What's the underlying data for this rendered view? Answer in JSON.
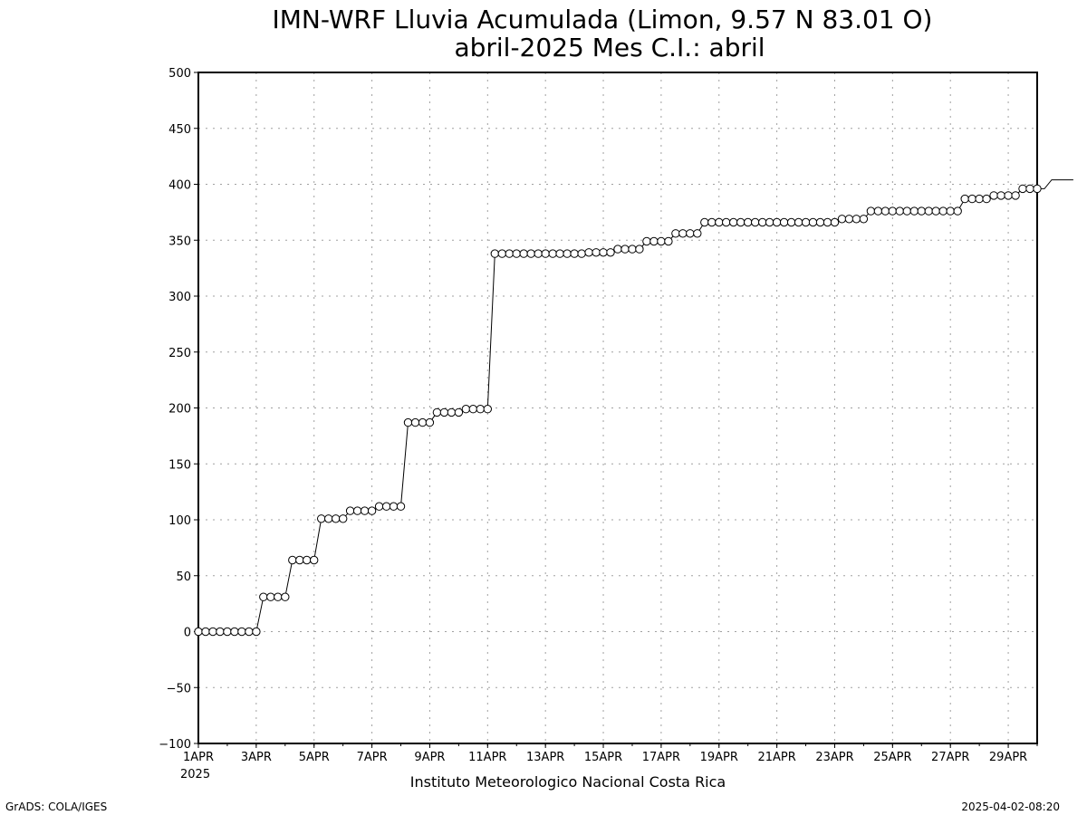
{
  "chart_data": {
    "type": "line",
    "title_line1": "IMN-WRF  Lluvia Acumulada (Limon, 9.57  N 83.01  O)",
    "title_line2": "abril-2025 Mes C.I.: abril",
    "xlabel": "",
    "ylabel": "",
    "ylim": [
      -100,
      500
    ],
    "yticks": [
      "500",
      "450",
      "400",
      "350",
      "300",
      "250",
      "200",
      "150",
      "100",
      "50",
      "0",
      "−50",
      "−100"
    ],
    "ytick_values": [
      500,
      450,
      400,
      350,
      300,
      250,
      200,
      150,
      100,
      50,
      0,
      -50,
      -100
    ],
    "xlim_days": [
      1,
      30
    ],
    "xticks": [
      {
        "day": 1,
        "label": "1APR"
      },
      {
        "day": 3,
        "label": "3APR"
      },
      {
        "day": 5,
        "label": "5APR"
      },
      {
        "day": 7,
        "label": "7APR"
      },
      {
        "day": 9,
        "label": "9APR"
      },
      {
        "day": 11,
        "label": "11APR"
      },
      {
        "day": 13,
        "label": "13APR"
      },
      {
        "day": 15,
        "label": "15APR"
      },
      {
        "day": 17,
        "label": "17APR"
      },
      {
        "day": 19,
        "label": "19APR"
      },
      {
        "day": 21,
        "label": "21APR"
      },
      {
        "day": 23,
        "label": "23APR"
      },
      {
        "day": 25,
        "label": "25APR"
      },
      {
        "day": 27,
        "label": "27APR"
      },
      {
        "day": 29,
        "label": "29APR"
      }
    ],
    "year_label": "2025",
    "grid": true,
    "series": [
      {
        "step_hours": 6,
        "start_day": 1,
        "values": [
          0,
          0,
          0,
          0,
          0,
          0,
          0,
          0,
          0,
          31,
          31,
          31,
          31,
          64,
          64,
          64,
          64,
          101,
          101,
          101,
          101,
          108,
          108,
          108,
          108,
          112,
          112,
          112,
          112,
          187,
          187,
          187,
          187,
          196,
          196,
          196,
          196,
          199,
          199,
          199,
          199,
          338,
          338,
          338,
          338,
          338,
          338,
          338,
          338,
          338,
          338,
          338,
          338,
          338,
          339,
          339,
          339,
          339,
          342,
          342,
          342,
          342,
          349,
          349,
          349,
          349,
          356,
          356,
          356,
          356,
          366,
          366,
          366,
          366,
          366,
          366,
          366,
          366,
          366,
          366,
          366,
          366,
          366,
          366,
          366,
          366,
          366,
          366,
          366,
          369,
          369,
          369,
          369,
          376,
          376,
          376,
          376,
          376,
          376,
          376,
          376,
          376,
          376,
          376,
          376,
          376,
          387,
          387,
          387,
          387,
          390,
          390,
          390,
          390,
          396,
          396,
          396,
          396,
          404,
          404,
          404,
          404
        ]
      }
    ]
  },
  "footer": {
    "institution": "Instituto Meteorologico Nacional Costa Rica",
    "credit_left": "GrADS: COLA/IGES",
    "credit_right": "2025-04-02-08:20"
  },
  "colors": {
    "axis": "#000000",
    "grid": "#a0a0a0",
    "line": "#000000",
    "marker_fill": "#ffffff"
  }
}
